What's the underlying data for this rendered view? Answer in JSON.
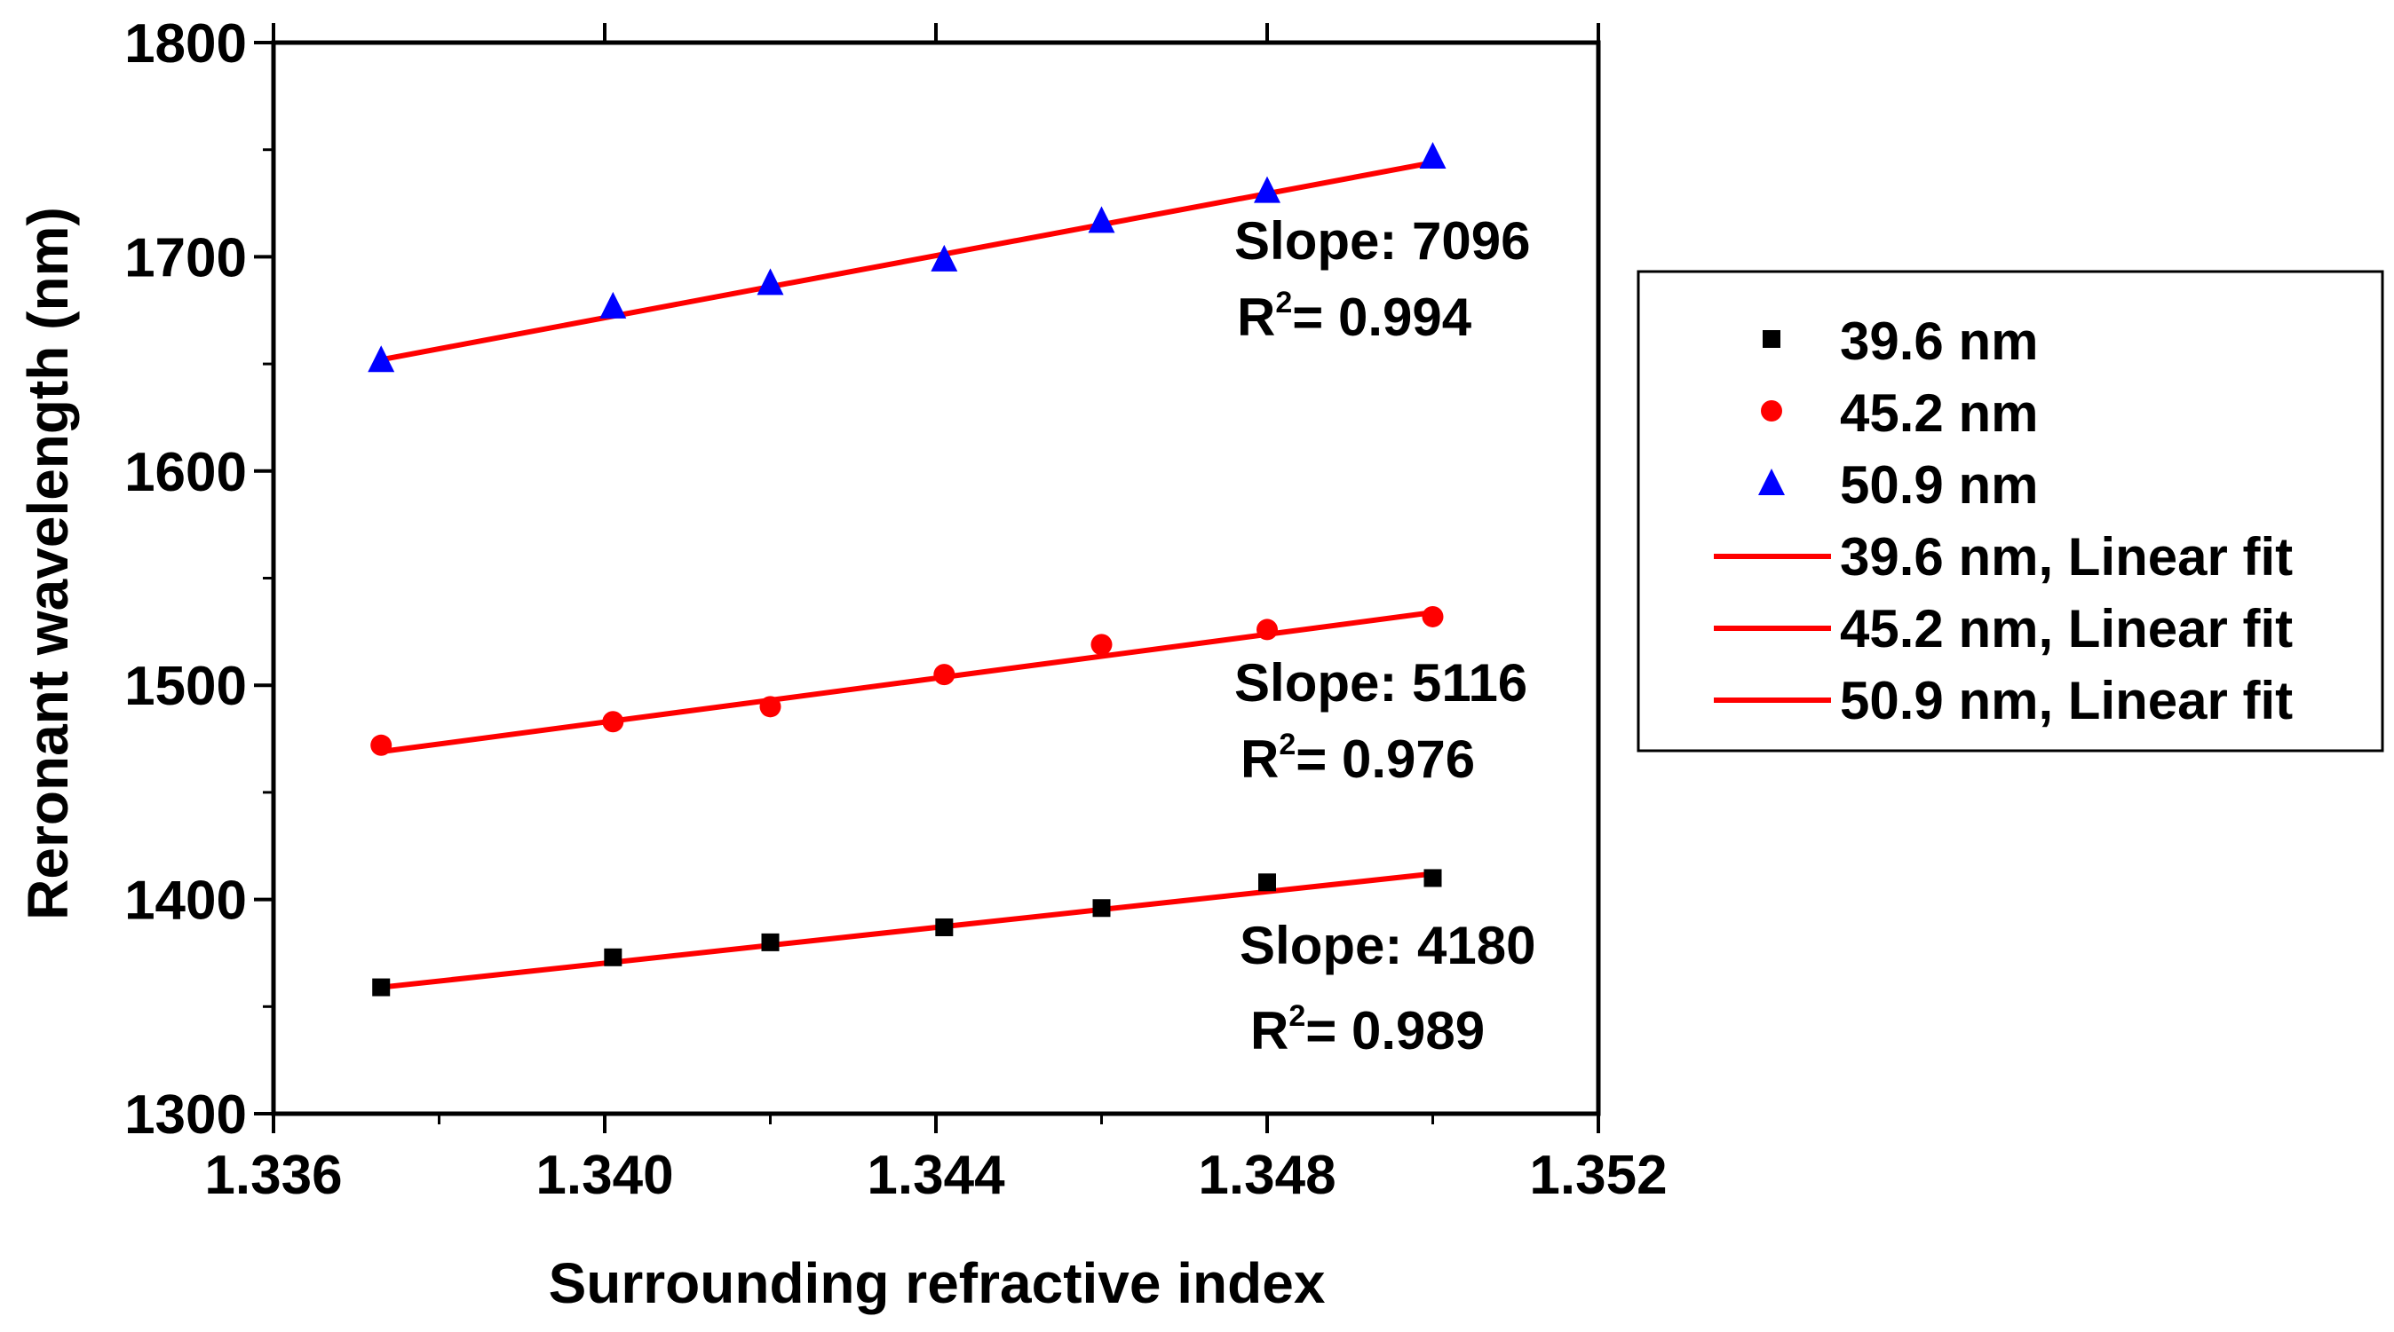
{
  "chart_data": {
    "type": "scatter",
    "title": "",
    "xlabel": "Surrounding refractive index",
    "ylabel": "Reronant wavelength (nm)",
    "xlim": [
      1.336,
      1.352
    ],
    "ylim": [
      1300,
      1800
    ],
    "xticks": [
      "1.336",
      "1.340",
      "1.344",
      "1.348",
      "1.352"
    ],
    "yticks": [
      "1300",
      "1400",
      "1500",
      "1600",
      "1700",
      "1800"
    ],
    "x": [
      1.3373,
      1.3401,
      1.342,
      1.3441,
      1.346,
      1.348,
      1.35
    ],
    "series": [
      {
        "name": "39.6 nm",
        "marker": "square",
        "color": "#000000",
        "values": [
          1359,
          1373,
          1380,
          1387,
          1396,
          1408,
          1410
        ],
        "fit": {
          "name": "39.6 nm, Linear fit",
          "color": "#ff0000",
          "y_start": 1359,
          "y_end": 1412
        },
        "annotation": {
          "slope": "Slope: 4180",
          "r2_prefix": "R",
          "r2_sup": "2",
          "r2_value": "= 0.989"
        }
      },
      {
        "name": "45.2 nm",
        "marker": "circle",
        "color": "#ff0000",
        "values": [
          1472,
          1483,
          1490,
          1505,
          1519,
          1526,
          1532
        ],
        "fit": {
          "name": "45.2 nm, Linear fit",
          "color": "#ff0000",
          "y_start": 1469,
          "y_end": 1534
        },
        "annotation": {
          "slope": "Slope: 5116",
          "r2_prefix": "R",
          "r2_sup": "2",
          "r2_value": "= 0.976"
        }
      },
      {
        "name": "50.9 nm",
        "marker": "triangle",
        "color": "#0000ff",
        "values": [
          1652,
          1677,
          1688,
          1699,
          1717,
          1731,
          1747
        ],
        "fit": {
          "name": "50.9 nm, Linear fit",
          "color": "#ff0000",
          "y_start": 1652,
          "y_end": 1744
        },
        "annotation": {
          "slope": "Slope: 7096",
          "r2_prefix": "R",
          "r2_sup": "2",
          "r2_value": "= 0.994"
        }
      }
    ],
    "legend_position": "right"
  }
}
